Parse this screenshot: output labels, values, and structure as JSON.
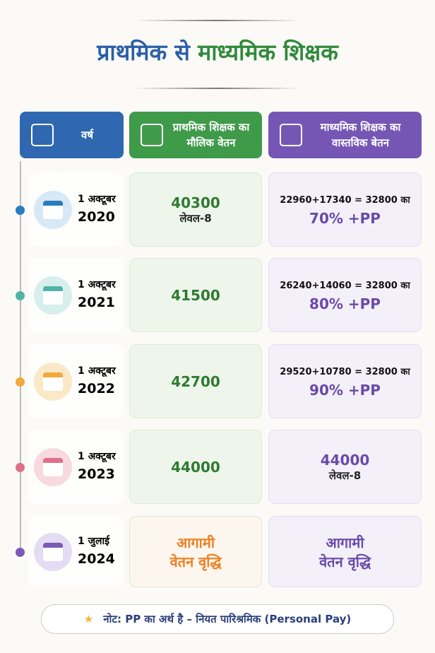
{
  "title_part1": "प्राथमिक से",
  "title_part2": "माध्यमिक शिक्षक",
  "headers": [
    "वर्ष",
    "प्राथमिक शिक्षक का मौलिक वेतन",
    "माध्यमिक शिक्षक का वास्तविक बेतन"
  ],
  "rows": [
    {
      "date": "1 अक्टूबर",
      "year": "2020",
      "primary": [
        "40300",
        "लेवल-8"
      ],
      "secondary": [
        "22960+17340 = 32800 का",
        "70% +PP"
      ]
    },
    {
      "date": "1 अक्टूबर",
      "year": "2021",
      "primary": [
        "41500"
      ],
      "secondary": [
        "26240+14060 = 32800 का",
        "80% +PP"
      ]
    },
    {
      "date": "1 अक्टूबर",
      "year": "2022",
      "primary": [
        "42700"
      ],
      "secondary": [
        "29520+10780 = 32800 का",
        "90% +PP"
      ]
    },
    {
      "date": "1 अक्टूबर",
      "year": "2023",
      "primary": [
        "44000"
      ],
      "secondary": [
        "44000",
        "लेवल-8"
      ]
    },
    {
      "date": "1 जुलाई",
      "year": "2024",
      "primary": [
        "आगामी",
        "वेतन वृद्धि"
      ],
      "secondary": [
        "आगामी",
        "वेतन वृद्धि"
      ]
    }
  ],
  "note": "नोट: PP का अर्थ है – नियत पारिश्रमिक (Personal Pay)"
}
